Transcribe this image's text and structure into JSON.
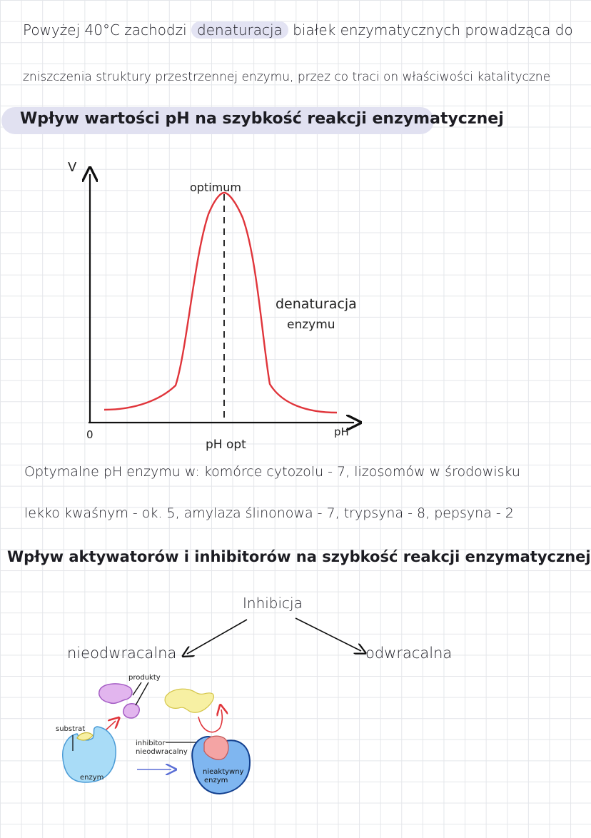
{
  "intro": {
    "line1_prefix": "Powyżej 40°C zachodzi",
    "line1_highlight": "denaturacja",
    "line1_suffix": "białek enzymatycznych prowadząca do",
    "line2": "zniszczenia struktury przestrzennej enzymu, przez co traci on właściwości katalityczne"
  },
  "section1": {
    "title": "Wpływ wartości pH na szybkość reakcji enzymatycznej"
  },
  "ph_chart": {
    "y_axis_label": "V",
    "x_axis_label": "pH",
    "origin_label": "0",
    "peak_label": "optimum",
    "opt_label": "pH opt",
    "annotation_line1": "denaturacja",
    "annotation_line2": "enzymu",
    "curve_color": "#e0353b"
  },
  "optimal_text": {
    "line1": "Optymalne pH enzymu w: komórce cytozolu - 7, lizosomów w środowisku",
    "line2": "lekko kwaśnym - ok. 5, amylaza ślinonowa - 7, trypsyna - 8, pepsyna - 2"
  },
  "section2": {
    "title": "Wpływ aktywatorów i inhibitorów na szybkość reakcji enzymatycznej"
  },
  "inhibition": {
    "root": "Inhibicja",
    "left": "nieodwracalna",
    "right": "odwracalna"
  },
  "diagram": {
    "substrate_label": "substrat",
    "products_label": "produkty",
    "enzyme_label": "enzym",
    "inhibitor_line1": "inhibitor",
    "inhibitor_line2": "nieodwracalny",
    "inactive_line1": "nieaktywny",
    "inactive_line2": "enzym",
    "colors": {
      "enzyme": "#a9dcf7",
      "inactive_enzyme": "#7fb6f0",
      "products": "#e2b5ee",
      "substrate": "#f7f0a3",
      "inhibitor": "#f4a4a4",
      "arrow_red": "#e0353b",
      "arrow_blue": "#5b6fd6"
    }
  }
}
